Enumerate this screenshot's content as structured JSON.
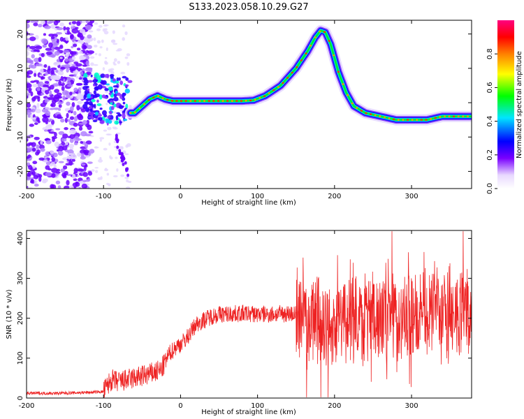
{
  "title": "S133.2023.058.10.29.G27",
  "chart_data": [
    {
      "type": "heatmap",
      "xlabel": "Height of straight line (km)",
      "ylabel": "Frequency (Hz)",
      "xlim": [
        -200,
        378
      ],
      "ylim": [
        -25,
        24
      ],
      "xticks": [
        "-200",
        "-100",
        "0",
        "100",
        "200",
        "300"
      ],
      "yticks": [
        "-20",
        "-10",
        "0",
        "10",
        "20"
      ],
      "colorbar": {
        "label": "Normalized spectral amplitude",
        "range": [
          0,
          1
        ],
        "ticks": [
          "0.0",
          "0.2",
          "0.4",
          "0.6",
          "0.8"
        ],
        "colors": [
          "#ffffff",
          "#e8d8ff",
          "#7a00ff",
          "#0000ff",
          "#00e5ff",
          "#00ff00",
          "#ffff00",
          "#ff8000",
          "#ff0000",
          "#ff0080"
        ]
      },
      "trace": {
        "x": [
          -65,
          -60,
          -50,
          -40,
          -30,
          -20,
          -10,
          0,
          20,
          40,
          60,
          80,
          95,
          110,
          130,
          150,
          165,
          175,
          182,
          188,
          195,
          205,
          215,
          225,
          240,
          260,
          280,
          300,
          320,
          340,
          360,
          378
        ],
        "y": [
          -3,
          -3,
          -1,
          1,
          2,
          1,
          0.5,
          0.5,
          0.5,
          0.5,
          0.5,
          0.5,
          0.7,
          2,
          5,
          10,
          15,
          19,
          21,
          20.5,
          17,
          9,
          3,
          -1,
          -3,
          -4,
          -5,
          -5,
          -5,
          -4,
          -4,
          -4
        ]
      }
    },
    {
      "type": "line",
      "xlabel": "Height of straight line (km)",
      "ylabel": "SNR (10 * v/v)",
      "xlim": [
        -200,
        378
      ],
      "ylim": [
        0,
        420
      ],
      "xticks": [
        "-200",
        "-100",
        "0",
        "100",
        "200",
        "300"
      ],
      "yticks": [
        "0",
        "100",
        "200",
        "300",
        "400"
      ],
      "color": "#ee2222",
      "envelope": {
        "x": [
          -200,
          -160,
          -120,
          -100,
          -90,
          -80,
          -60,
          -40,
          -25,
          -15,
          -5,
          0,
          10,
          20,
          30,
          40,
          50,
          60,
          80,
          100,
          120,
          140,
          150,
          160,
          180,
          200,
          220,
          250,
          280,
          300,
          330,
          360,
          378
        ],
        "y": [
          12,
          12,
          14,
          16,
          45,
          40,
          50,
          60,
          70,
          110,
          130,
          135,
          155,
          185,
          195,
          205,
          210,
          210,
          212,
          210,
          210,
          212,
          210,
          205,
          195,
          190,
          195,
          200,
          200,
          200,
          205,
          210,
          210
        ]
      }
    }
  ]
}
